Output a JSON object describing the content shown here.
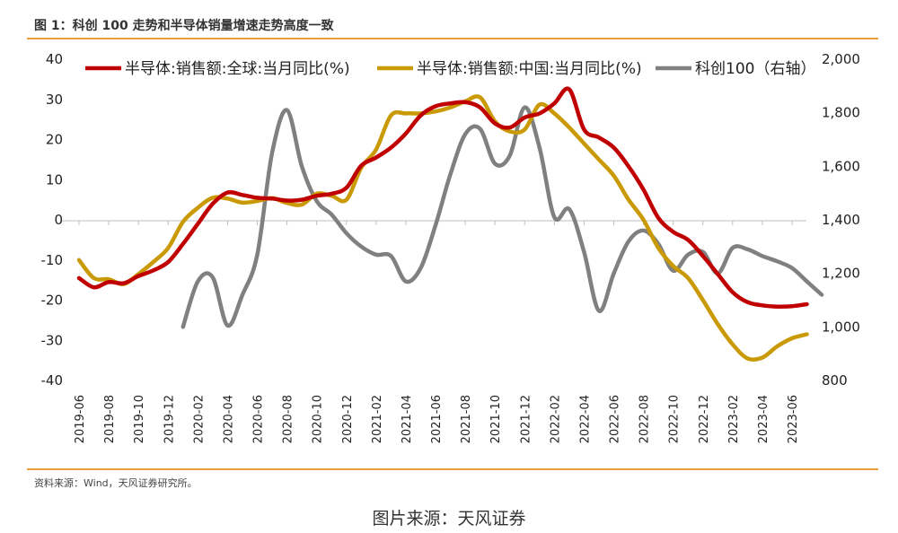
{
  "figure_title": "图 1：科创 100 走势和半导体销量增速走势高度一致",
  "source_note": "资料来源：Wind，天风证券研究所。",
  "caption": "图片来源：天风证券",
  "colors": {
    "global": "#c00000",
    "china": "#c99a06",
    "kc100": "#808080",
    "rule": "#e8a13a"
  },
  "chart_data": {
    "type": "line",
    "title": "",
    "left_axis": {
      "ticks": [
        "40",
        "30",
        "20",
        "10",
        "0",
        "-10",
        "-20",
        "-30",
        "-40"
      ],
      "ylim": [
        -40,
        40
      ]
    },
    "right_axis": {
      "ticks": [
        "2,000",
        "1,800",
        "1,600",
        "1,400",
        "1,200",
        "1,000",
        "800"
      ],
      "ylim": [
        800,
        2000
      ]
    },
    "x_ticks": [
      "2019-06",
      "2019-08",
      "2019-10",
      "2019-12",
      "2020-02",
      "2020-04",
      "2020-06",
      "2020-08",
      "2020-10",
      "2020-12",
      "2021-02",
      "2021-04",
      "2021-06",
      "2021-08",
      "2021-10",
      "2021-12",
      "2022-02",
      "2022-04",
      "2022-06",
      "2022-08",
      "2022-10",
      "2022-12",
      "2023-02",
      "2023-04",
      "2023-06"
    ],
    "grid": false,
    "legend_position": "top",
    "series": [
      {
        "name": "半导体:销售额:全球:当月同比(%)",
        "axis": "left",
        "color_key": "global",
        "points": [
          [
            "2019-06",
            -14.5
          ],
          [
            "2019-07",
            -16.8
          ],
          [
            "2019-08",
            -15.5
          ],
          [
            "2019-09",
            -15.8
          ],
          [
            "2019-10",
            -14.0
          ],
          [
            "2019-11",
            -12.6
          ],
          [
            "2019-12",
            -10.5
          ],
          [
            "2020-01",
            -6
          ],
          [
            "2020-02",
            -1
          ],
          [
            "2020-03",
            4
          ],
          [
            "2020-04",
            6.8
          ],
          [
            "2020-05",
            6.2
          ],
          [
            "2020-06",
            5.5
          ],
          [
            "2020-07",
            5.3
          ],
          [
            "2020-08",
            4.8
          ],
          [
            "2020-09",
            5.0
          ],
          [
            "2020-10",
            6.0
          ],
          [
            "2020-11",
            6.5
          ],
          [
            "2020-12",
            8.0
          ],
          [
            "2021-01",
            13.5
          ],
          [
            "2021-02",
            15.5
          ],
          [
            "2021-03",
            18.0
          ],
          [
            "2021-04",
            21.5
          ],
          [
            "2021-05",
            26.0
          ],
          [
            "2021-06",
            28.3
          ],
          [
            "2021-07",
            29.0
          ],
          [
            "2021-08",
            29.3
          ],
          [
            "2021-09",
            28.0
          ],
          [
            "2021-10",
            24.0
          ],
          [
            "2021-11",
            23.0
          ],
          [
            "2021-12",
            25.5
          ],
          [
            "2022-01",
            26.5
          ],
          [
            "2022-02",
            29.0
          ],
          [
            "2022-03",
            32.5
          ],
          [
            "2022-04",
            22.5
          ],
          [
            "2022-05",
            20.5
          ],
          [
            "2022-06",
            18.0
          ],
          [
            "2022-07",
            13.3
          ],
          [
            "2022-08",
            7.5
          ],
          [
            "2022-09",
            0.5
          ],
          [
            "2022-10",
            -3.0
          ],
          [
            "2022-11",
            -5.0
          ],
          [
            "2022-12",
            -9.0
          ],
          [
            "2023-01",
            -13.5
          ],
          [
            "2023-02",
            -18.0
          ],
          [
            "2023-03",
            -20.5
          ],
          [
            "2023-04",
            -21.3
          ],
          [
            "2023-05",
            -21.6
          ],
          [
            "2023-06",
            -21.5
          ],
          [
            "2023-07",
            -21.0
          ]
        ]
      },
      {
        "name": "半导体:销售额:中国:当月同比(%)",
        "axis": "left",
        "color_key": "china",
        "points": [
          [
            "2019-06",
            -10.0
          ],
          [
            "2019-07",
            -14.5
          ],
          [
            "2019-08",
            -14.8
          ],
          [
            "2019-09",
            -16.0
          ],
          [
            "2019-10",
            -13.5
          ],
          [
            "2019-11",
            -10.5
          ],
          [
            "2019-12",
            -7.0
          ],
          [
            "2020-01",
            -0.5
          ],
          [
            "2020-02",
            3.0
          ],
          [
            "2020-03",
            5.5
          ],
          [
            "2020-04",
            5.3
          ],
          [
            "2020-05",
            4.3
          ],
          [
            "2020-06",
            4.7
          ],
          [
            "2020-07",
            5.4
          ],
          [
            "2020-08",
            4.2
          ],
          [
            "2020-09",
            3.8
          ],
          [
            "2020-10",
            6.5
          ],
          [
            "2020-11",
            6.0
          ],
          [
            "2020-12",
            5.0
          ],
          [
            "2021-01",
            13.0
          ],
          [
            "2021-02",
            17.5
          ],
          [
            "2021-03",
            26.0
          ],
          [
            "2021-04",
            26.5
          ],
          [
            "2021-05",
            26.5
          ],
          [
            "2021-06",
            27.0
          ],
          [
            "2021-07",
            28.0
          ],
          [
            "2021-08",
            29.5
          ],
          [
            "2021-09",
            30.5
          ],
          [
            "2021-10",
            24.5
          ],
          [
            "2021-11",
            22.0
          ],
          [
            "2021-12",
            22.5
          ],
          [
            "2022-01",
            28.7
          ],
          [
            "2022-02",
            26.5
          ],
          [
            "2022-03",
            23.0
          ],
          [
            "2022-04",
            19.0
          ],
          [
            "2022-05",
            15.0
          ],
          [
            "2022-06",
            11.0
          ],
          [
            "2022-07",
            5.0
          ],
          [
            "2022-08",
            0.0
          ],
          [
            "2022-09",
            -7.0
          ],
          [
            "2022-10",
            -11.5
          ],
          [
            "2022-11",
            -14.5
          ],
          [
            "2022-12",
            -20.0
          ],
          [
            "2023-01",
            -26.0
          ],
          [
            "2023-02",
            -31.0
          ],
          [
            "2023-03",
            -34.5
          ],
          [
            "2023-04",
            -34.3
          ],
          [
            "2023-05",
            -31.5
          ],
          [
            "2023-06",
            -29.5
          ],
          [
            "2023-07",
            -28.5
          ]
        ]
      },
      {
        "name": "科创100（右轴）",
        "axis": "right",
        "color_key": "kc100",
        "points": [
          [
            "2020-01",
            1000
          ],
          [
            "2020-02",
            1170
          ],
          [
            "2020-03",
            1185
          ],
          [
            "2020-04",
            1005
          ],
          [
            "2020-05",
            1120
          ],
          [
            "2020-06",
            1270
          ],
          [
            "2020-07",
            1650
          ],
          [
            "2020-08",
            1810
          ],
          [
            "2020-09",
            1600
          ],
          [
            "2020-10",
            1470
          ],
          [
            "2020-11",
            1420
          ],
          [
            "2020-12",
            1350
          ],
          [
            "2021-01",
            1300
          ],
          [
            "2021-02",
            1270
          ],
          [
            "2021-03",
            1265
          ],
          [
            "2021-04",
            1170
          ],
          [
            "2021-05",
            1220
          ],
          [
            "2021-06",
            1380
          ],
          [
            "2021-07",
            1570
          ],
          [
            "2021-08",
            1720
          ],
          [
            "2021-09",
            1740
          ],
          [
            "2021-10",
            1610
          ],
          [
            "2021-11",
            1640
          ],
          [
            "2021-12",
            1820
          ],
          [
            "2022-01",
            1670
          ],
          [
            "2022-02",
            1410
          ],
          [
            "2022-03",
            1440
          ],
          [
            "2022-04",
            1280
          ],
          [
            "2022-05",
            1060
          ],
          [
            "2022-06",
            1200
          ],
          [
            "2022-07",
            1320
          ],
          [
            "2022-08",
            1360
          ],
          [
            "2022-09",
            1310
          ],
          [
            "2022-10",
            1210
          ],
          [
            "2022-11",
            1270
          ],
          [
            "2022-12",
            1280
          ],
          [
            "2023-01",
            1200
          ],
          [
            "2023-02",
            1295
          ],
          [
            "2023-03",
            1290
          ],
          [
            "2023-04",
            1265
          ],
          [
            "2023-05",
            1245
          ],
          [
            "2023-06",
            1220
          ],
          [
            "2023-07",
            1170
          ],
          [
            "2023-08",
            1120
          ]
        ]
      }
    ]
  }
}
